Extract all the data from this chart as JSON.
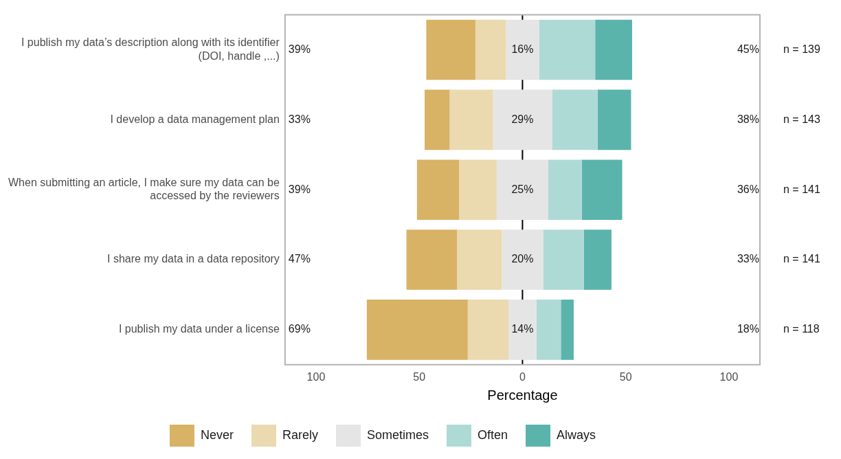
{
  "chart_data": {
    "type": "bar",
    "orientation": "horizontal",
    "xlabel": "Percentage",
    "categories": [
      "I publish my data’s description along with its identifier (DOI, handle ,...)",
      "I develop a data management plan",
      "When submitting an article, I make sure my data can be accessed by the reviewers",
      "I share my data in a data repository",
      "I publish my data under a license"
    ],
    "series": [
      {
        "name": "Never",
        "color": "#d8b365",
        "values": [
          23.8,
          12.1,
          20.4,
          24.5,
          48.9
        ],
        "base": [
          -46.6,
          -47.4,
          -51.1,
          -56.2,
          -75.4
        ]
      },
      {
        "name": "Rarely",
        "color": "#ebd9af",
        "values": [
          14.8,
          21.0,
          18.2,
          21.7,
          19.7
        ],
        "base": [
          -22.8,
          -35.3,
          -30.7,
          -31.7,
          -26.5
        ]
      },
      {
        "name": "Sometimes",
        "color": "#e5e5e5",
        "values": [
          16.0,
          28.6,
          25.0,
          20.0,
          13.6
        ],
        "base": [
          -8.0,
          -14.3,
          -12.5,
          -10.0,
          -6.8
        ],
        "value_labels": [
          "16%",
          "29%",
          "25%",
          "20%",
          "14%"
        ]
      },
      {
        "name": "Often",
        "color": "#aedad6",
        "values": [
          27.2,
          22.1,
          16.2,
          19.7,
          11.8
        ],
        "base": [
          8.0,
          14.3,
          12.5,
          10.0,
          6.8
        ]
      },
      {
        "name": "Always",
        "color": "#5ab4ac",
        "values": [
          17.9,
          16.2,
          19.6,
          13.4,
          6.2
        ],
        "base": [
          35.2,
          36.4,
          28.7,
          29.7,
          18.6
        ]
      }
    ],
    "xlim": [
      -115,
      115
    ],
    "xticks": [
      {
        "value": -100,
        "label": "100"
      },
      {
        "value": -50,
        "label": "50"
      },
      0,
      50,
      100
    ],
    "ref_lines": [
      {
        "axis": "x",
        "value": 0,
        "color": "#000000",
        "line_style": "solid"
      }
    ],
    "annotations": [
      "39%",
      "33%",
      "39%",
      "47%",
      "69%",
      "45%",
      "38%",
      "36%",
      "33%",
      "18%",
      "n = 139",
      "n = 143",
      "n = 141",
      "n = 141",
      "n = 118"
    ],
    "legend": "bottom",
    "grid": false
  }
}
